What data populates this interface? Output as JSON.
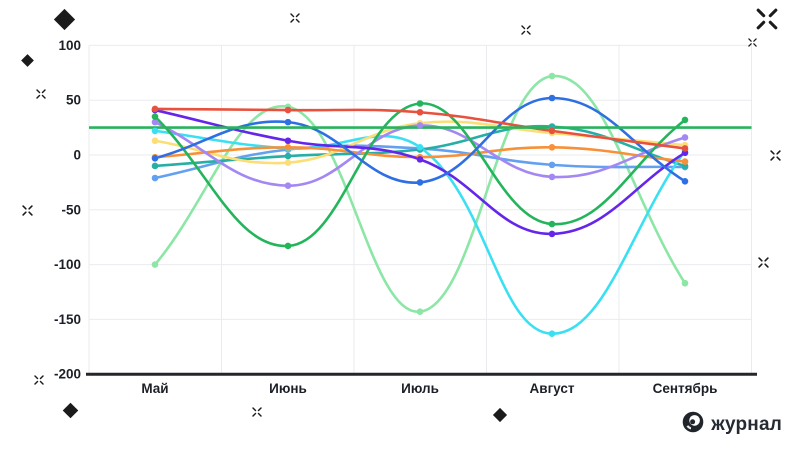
{
  "watermark": {
    "label": "журнал"
  },
  "chart_data": {
    "type": "line",
    "title": "",
    "xlabel": "",
    "ylabel": "",
    "categories": [
      "Май",
      "Июнь",
      "Июль",
      "Август",
      "Сентябрь"
    ],
    "y_ticks": [
      100,
      50,
      0,
      -50,
      -100,
      -150,
      -200
    ],
    "ylim": [
      -200,
      100
    ],
    "grid": true,
    "legend_position": "none",
    "grid_color": "#e9ebef",
    "axis_color": "#23262b",
    "label_color": "#1c2026",
    "reference_line": {
      "value": 25,
      "color": "#29b35d"
    },
    "series": [
      {
        "name": "light-green",
        "color": "#8ce6a5",
        "values": [
          -100,
          44,
          -143,
          72,
          -117
        ]
      },
      {
        "name": "light-blue",
        "color": "#64a0f0",
        "values": [
          -21,
          5,
          6,
          -9,
          -11
        ]
      },
      {
        "name": "teal",
        "color": "#27afa6",
        "values": [
          -10,
          -1,
          5,
          26,
          -10
        ]
      },
      {
        "name": "cyan",
        "color": "#3ae0f2",
        "values": [
          22,
          6,
          7,
          -163,
          4
        ]
      },
      {
        "name": "yellow",
        "color": "#fbdf76",
        "values": [
          13,
          -7,
          29,
          20,
          9
        ]
      },
      {
        "name": "orange",
        "color": "#f79038",
        "values": [
          -2,
          7,
          -2,
          7,
          -6
        ]
      },
      {
        "name": "light-purple",
        "color": "#a387f2",
        "values": [
          30,
          -28,
          27,
          -20,
          16
        ]
      },
      {
        "name": "green",
        "color": "#24b55c",
        "values": [
          35,
          -83,
          47,
          -63,
          32
        ]
      },
      {
        "name": "violet",
        "color": "#6426ea",
        "values": [
          41,
          13,
          -4,
          -72,
          2
        ]
      },
      {
        "name": "blue",
        "color": "#2f6fe4",
        "values": [
          -3,
          30,
          -25,
          52,
          -24
        ]
      },
      {
        "name": "red",
        "color": "#e8513d",
        "values": [
          42,
          41,
          39,
          22,
          6
        ]
      }
    ]
  }
}
